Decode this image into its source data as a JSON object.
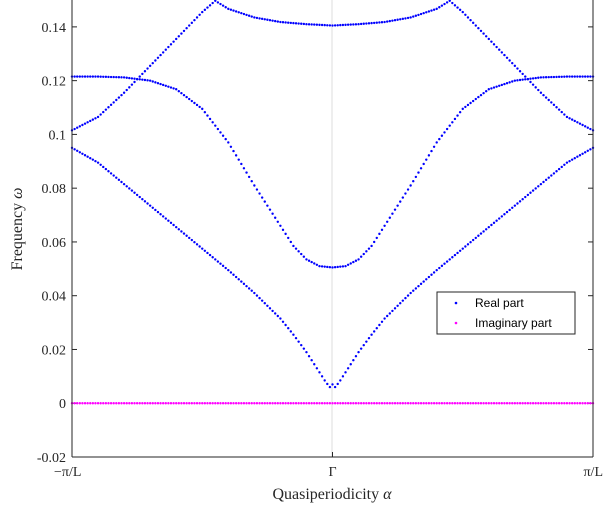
{
  "chart_data": {
    "type": "scatter",
    "xlabel": "Quasiperiodicity",
    "xlabel_symbol": "α",
    "ylabel": "Frequency",
    "ylabel_symbol": "ω",
    "xlim": [
      -1,
      1
    ],
    "ylim": [
      -0.02,
      0.15
    ],
    "x_ticks": [
      {
        "value": -1,
        "label": "−π/L"
      },
      {
        "value": 0,
        "label": "Γ"
      },
      {
        "value": 1,
        "label": "π/L"
      }
    ],
    "y_ticks": [
      {
        "value": -0.02,
        "label": "-0.02"
      },
      {
        "value": 0,
        "label": "0"
      },
      {
        "value": 0.02,
        "label": "0.02"
      },
      {
        "value": 0.04,
        "label": "0.04"
      },
      {
        "value": 0.06,
        "label": "0.06"
      },
      {
        "value": 0.08,
        "label": "0.08"
      },
      {
        "value": 0.1,
        "label": "0.1"
      },
      {
        "value": 0.12,
        "label": "0.12"
      },
      {
        "value": 0.14,
        "label": "0.14"
      }
    ],
    "grid": "vertical line at Γ",
    "legend_position": "lower-right",
    "series": [
      {
        "name": "Real part",
        "color": "#0000ff",
        "bands": [
          {
            "x": [
              -1,
              -0.9,
              -0.8,
              -0.7,
              -0.6,
              -0.5,
              -0.4,
              -0.3,
              -0.2,
              -0.15,
              -0.1,
              -0.07,
              -0.05,
              -0.03,
              -0.015,
              -0.005,
              0,
              0.005,
              0.015,
              0.03,
              0.05,
              0.07,
              0.1,
              0.15,
              0.2,
              0.3,
              0.4,
              0.5,
              0.6,
              0.7,
              0.8,
              0.9,
              1
            ],
            "y": [
              0.095,
              0.0895,
              0.0815,
              0.0735,
              0.0655,
              0.0575,
              0.0495,
              0.041,
              0.0315,
              0.0255,
              0.019,
              0.0145,
              0.0115,
              0.0085,
              0.0065,
              0.0055,
              0.007,
              0.0055,
              0.0065,
              0.0085,
              0.0115,
              0.0145,
              0.019,
              0.0255,
              0.0315,
              0.041,
              0.0495,
              0.0575,
              0.0655,
              0.0735,
              0.0815,
              0.0895,
              0.095
            ]
          },
          {
            "x": [
              -1,
              -0.9,
              -0.8,
              -0.7,
              -0.6,
              -0.5,
              -0.4,
              -0.3,
              -0.25,
              -0.2,
              -0.15,
              -0.1,
              -0.05,
              0,
              0.05,
              0.1,
              0.15,
              0.2,
              0.25,
              0.3,
              0.4,
              0.5,
              0.6,
              0.7,
              0.8,
              0.9,
              1
            ],
            "y": [
              0.1215,
              0.1215,
              0.1212,
              0.12,
              0.1168,
              0.1095,
              0.097,
              0.081,
              0.0735,
              0.066,
              0.0585,
              0.0535,
              0.051,
              0.0505,
              0.051,
              0.0535,
              0.0585,
              0.066,
              0.0735,
              0.081,
              0.097,
              0.1095,
              0.1168,
              0.12,
              0.1212,
              0.1215,
              0.1215
            ]
          },
          {
            "x": [
              -1,
              -0.9,
              -0.8,
              -0.7,
              -0.6,
              -0.5,
              -0.45,
              -0.4,
              -0.3,
              -0.2,
              -0.1,
              0,
              0.1,
              0.2,
              0.3,
              0.4,
              0.45,
              0.5,
              0.6,
              0.7,
              0.8,
              0.9,
              1
            ],
            "y": [
              0.1015,
              0.1065,
              0.1155,
              0.1255,
              0.1355,
              0.1455,
              0.1497,
              0.1467,
              0.1435,
              0.1418,
              0.141,
              0.1405,
              0.141,
              0.1418,
              0.1435,
              0.1467,
              0.1497,
              0.1455,
              0.1355,
              0.1255,
              0.1155,
              0.1065,
              0.1015
            ]
          }
        ]
      },
      {
        "name": "Imaginary part",
        "color": "#ff00ff",
        "bands": [
          {
            "x": [
              -1,
              1
            ],
            "y": [
              0,
              0
            ]
          }
        ]
      }
    ]
  }
}
